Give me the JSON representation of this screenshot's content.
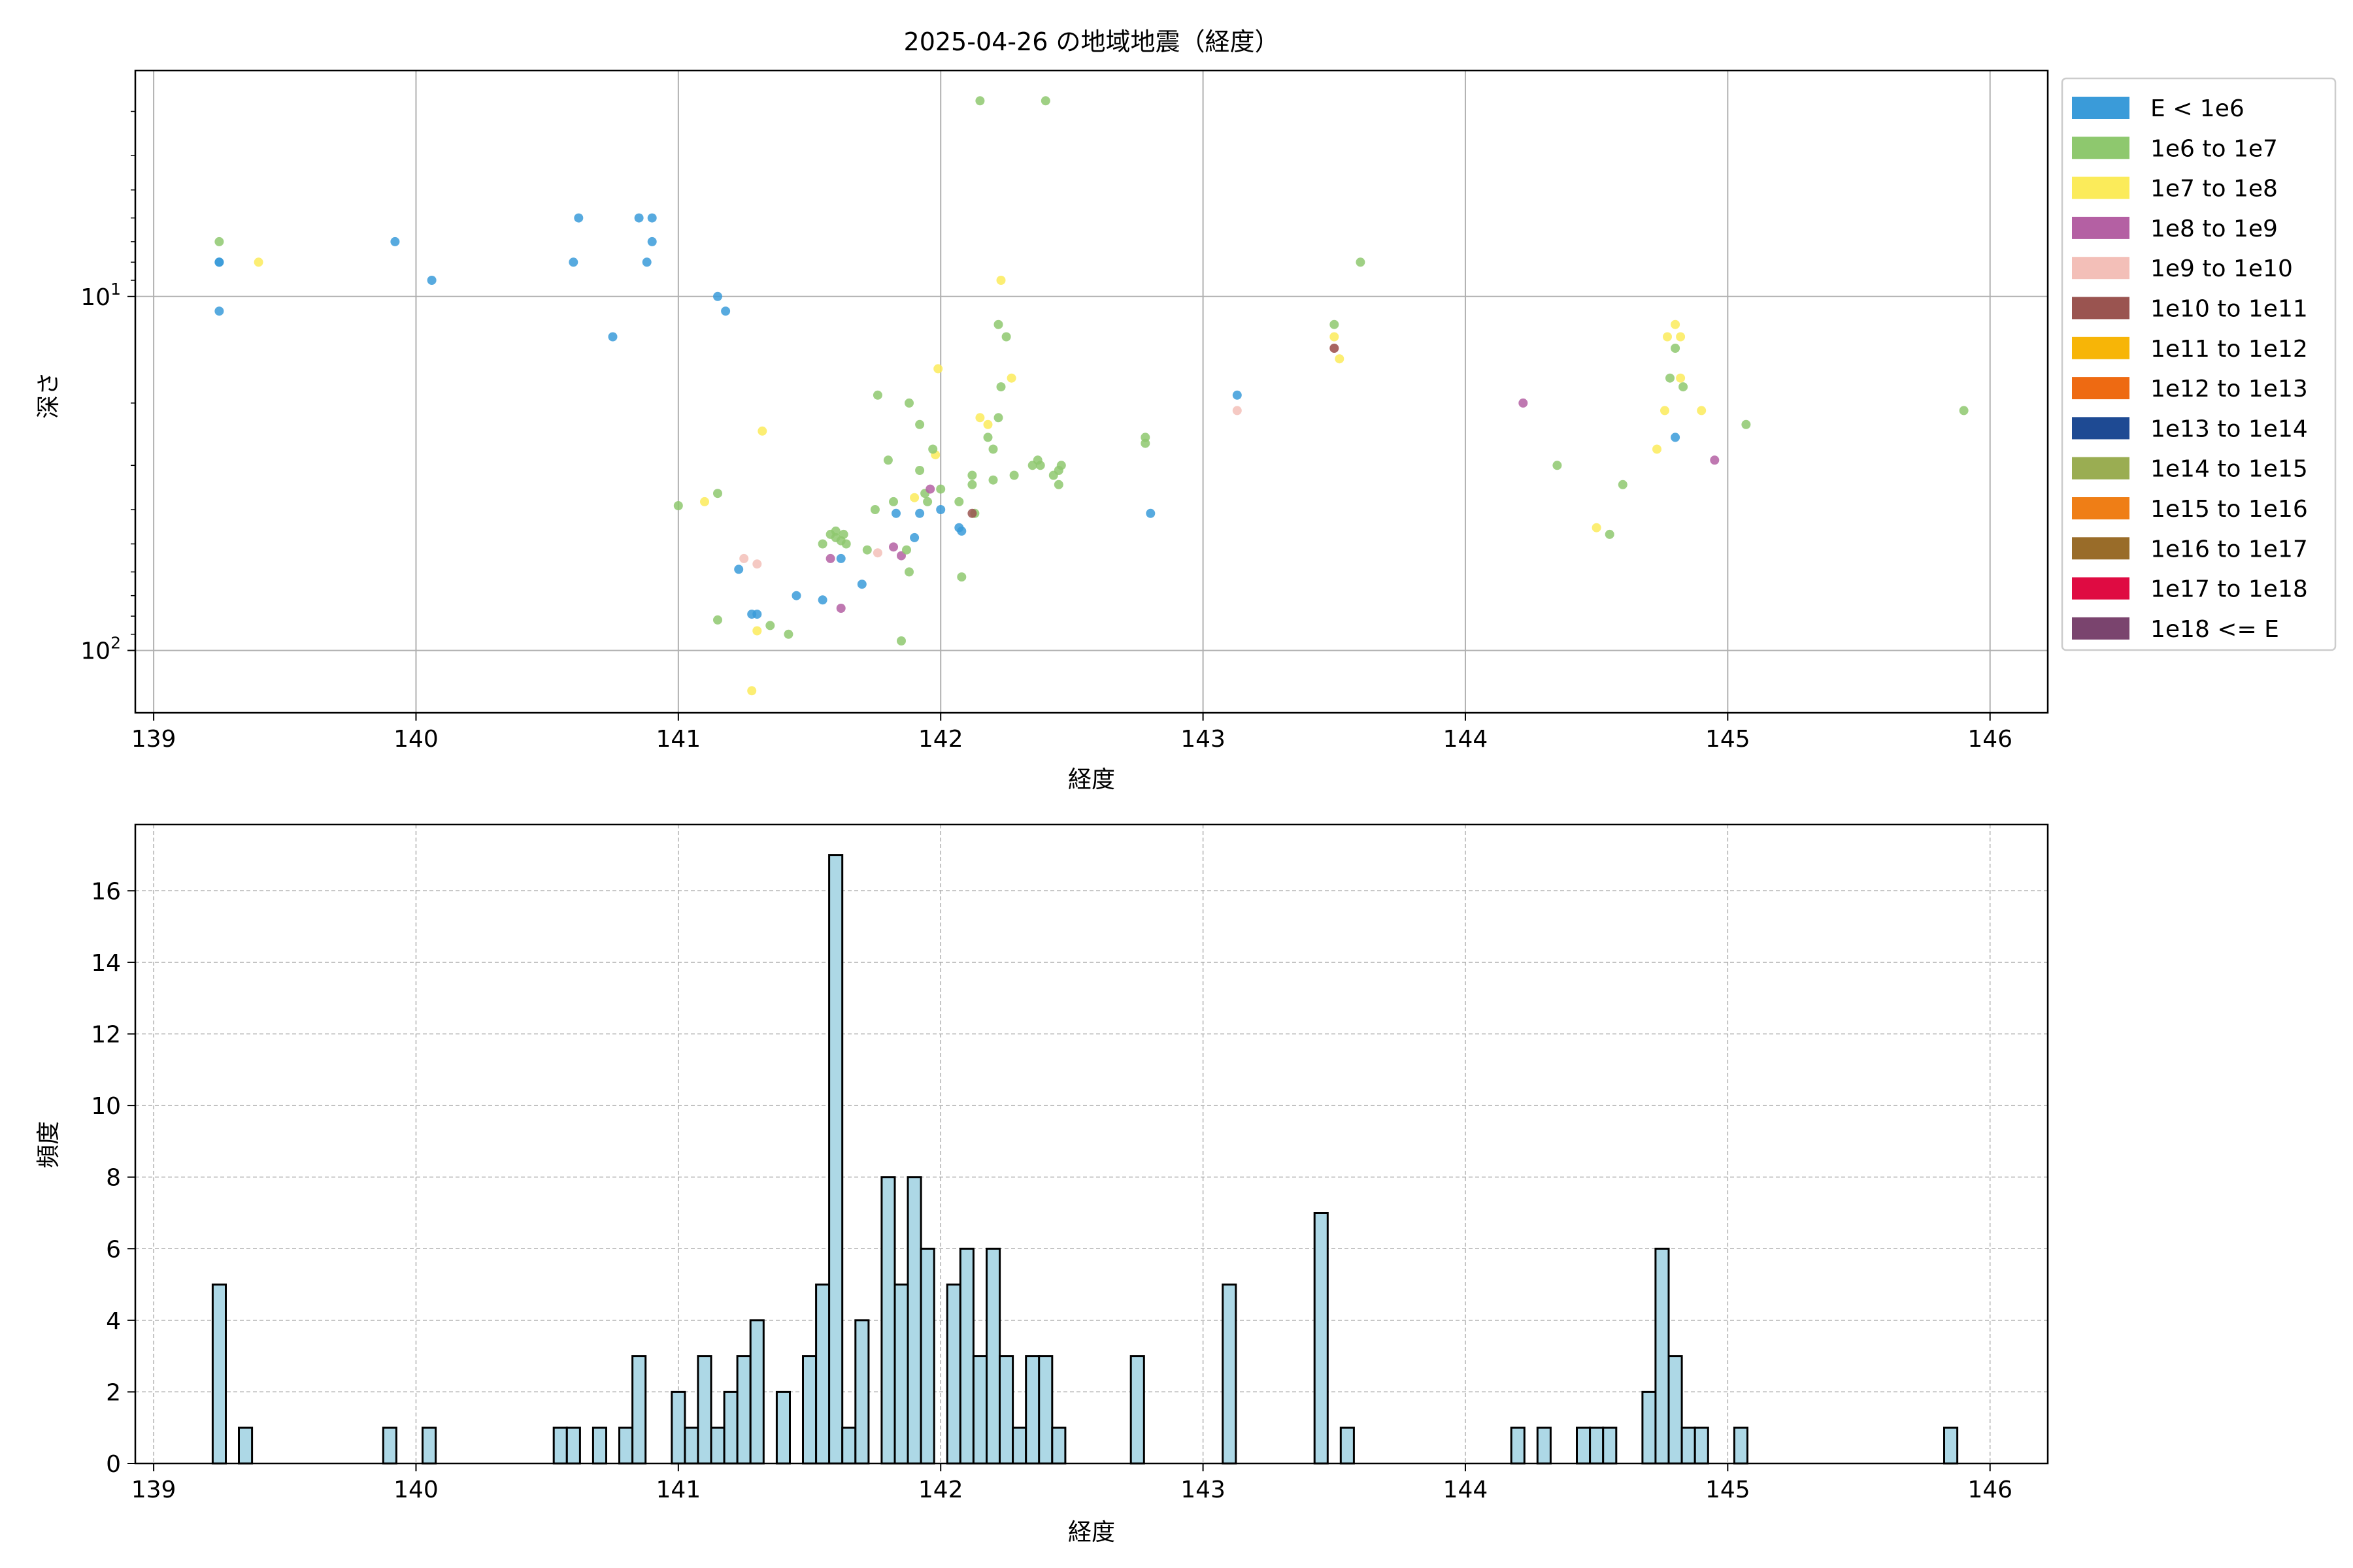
{
  "chart_data": [
    {
      "type": "scatter",
      "title": "2025-04-26 の地域地震（経度）",
      "xlabel": "経度",
      "ylabel": "深さ",
      "xlim": [
        138.93,
        146.22
      ],
      "ylim": [
        150,
        2.3
      ],
      "yscale": "log",
      "y_inverted": true,
      "grid": true,
      "x_ticks": [
        "139",
        "140",
        "141",
        "142",
        "143",
        "144",
        "145",
        "146"
      ],
      "y_ticks": [
        {
          "value": 10,
          "base": "10",
          "exp": "1"
        },
        {
          "value": 100,
          "base": "10",
          "exp": "2"
        }
      ],
      "legend": {
        "placement": "outside-right",
        "entries": [
          {
            "label": "E < 1e6",
            "color": "#3a9bd9"
          },
          {
            "label": "1e6 to 1e7",
            "color": "#8ec86e"
          },
          {
            "label": "1e7 to 1e8",
            "color": "#fbeb5a"
          },
          {
            "label": "1e8 to 1e9",
            "color": "#b460a3"
          },
          {
            "label": "1e9 to 1e10",
            "color": "#f3bfb8"
          },
          {
            "label": "1e10 to 1e11",
            "color": "#9a5450"
          },
          {
            "label": "1e11 to 1e12",
            "color": "#f7b507"
          },
          {
            "label": "1e12 to 1e13",
            "color": "#ee6a12"
          },
          {
            "label": "1e13 to 1e14",
            "color": "#1e4a93"
          },
          {
            "label": "1e14 to 1e15",
            "color": "#9aad52"
          },
          {
            "label": "1e15 to 1e16",
            "color": "#ef7e16"
          },
          {
            "label": "1e16 to 1e17",
            "color": "#996c29"
          },
          {
            "label": "1e17 to 1e18",
            "color": "#df0b42"
          },
          {
            "label": "1e18 <= E",
            "color": "#7a446e"
          }
        ]
      },
      "points": [
        {
          "x": 139.25,
          "y": 8,
          "c": 0
        },
        {
          "x": 139.25,
          "y": 8,
          "c": 0
        },
        {
          "x": 139.25,
          "y": 11,
          "c": 0
        },
        {
          "x": 139.25,
          "y": 7,
          "c": 1
        },
        {
          "x": 139.4,
          "y": 8,
          "c": 2
        },
        {
          "x": 139.92,
          "y": 7,
          "c": 0
        },
        {
          "x": 140.06,
          "y": 9,
          "c": 0
        },
        {
          "x": 140.6,
          "y": 8,
          "c": 0
        },
        {
          "x": 140.62,
          "y": 6,
          "c": 0
        },
        {
          "x": 140.75,
          "y": 13,
          "c": 0
        },
        {
          "x": 140.85,
          "y": 6,
          "c": 0
        },
        {
          "x": 140.9,
          "y": 6,
          "c": 0
        },
        {
          "x": 140.9,
          "y": 7,
          "c": 0
        },
        {
          "x": 140.88,
          "y": 8,
          "c": 0
        },
        {
          "x": 141.15,
          "y": 10,
          "c": 0
        },
        {
          "x": 141.18,
          "y": 11,
          "c": 0
        },
        {
          "x": 142.15,
          "y": 2.8,
          "c": 1
        },
        {
          "x": 142.4,
          "y": 2.8,
          "c": 1
        },
        {
          "x": 142.23,
          "y": 9,
          "c": 2
        },
        {
          "x": 143.6,
          "y": 8,
          "c": 1
        },
        {
          "x": 143.5,
          "y": 12,
          "c": 1
        },
        {
          "x": 143.5,
          "y": 13,
          "c": 2
        },
        {
          "x": 143.5,
          "y": 14,
          "c": 4
        },
        {
          "x": 143.5,
          "y": 14,
          "c": 5
        },
        {
          "x": 143.52,
          "y": 15,
          "c": 2
        },
        {
          "x": 143.13,
          "y": 19,
          "c": 0
        },
        {
          "x": 143.13,
          "y": 21,
          "c": 4
        },
        {
          "x": 144.22,
          "y": 20,
          "c": 3
        },
        {
          "x": 144.35,
          "y": 30,
          "c": 1
        },
        {
          "x": 144.6,
          "y": 34,
          "c": 1
        },
        {
          "x": 144.5,
          "y": 45,
          "c": 2
        },
        {
          "x": 144.55,
          "y": 47,
          "c": 1
        },
        {
          "x": 144.8,
          "y": 12,
          "c": 2
        },
        {
          "x": 144.77,
          "y": 13,
          "c": 2
        },
        {
          "x": 144.82,
          "y": 13,
          "c": 2
        },
        {
          "x": 144.8,
          "y": 14,
          "c": 1
        },
        {
          "x": 144.78,
          "y": 17,
          "c": 1
        },
        {
          "x": 144.82,
          "y": 17,
          "c": 2
        },
        {
          "x": 144.83,
          "y": 18,
          "c": 1
        },
        {
          "x": 144.76,
          "y": 21,
          "c": 2
        },
        {
          "x": 144.9,
          "y": 21,
          "c": 2
        },
        {
          "x": 144.8,
          "y": 25,
          "c": 0
        },
        {
          "x": 144.73,
          "y": 27,
          "c": 2
        },
        {
          "x": 144.95,
          "y": 29,
          "c": 3
        },
        {
          "x": 145.07,
          "y": 23,
          "c": 1
        },
        {
          "x": 145.9,
          "y": 21,
          "c": 1
        },
        {
          "x": 142.78,
          "y": 25,
          "c": 1
        },
        {
          "x": 142.78,
          "y": 26,
          "c": 1
        },
        {
          "x": 142.8,
          "y": 41,
          "c": 0
        },
        {
          "x": 141.0,
          "y": 39,
          "c": 1
        },
        {
          "x": 141.1,
          "y": 38,
          "c": 2
        },
        {
          "x": 141.15,
          "y": 36,
          "c": 1
        },
        {
          "x": 141.25,
          "y": 55,
          "c": 4
        },
        {
          "x": 141.3,
          "y": 57,
          "c": 4
        },
        {
          "x": 141.23,
          "y": 59,
          "c": 0
        },
        {
          "x": 141.28,
          "y": 79,
          "c": 0
        },
        {
          "x": 141.3,
          "y": 79,
          "c": 0
        },
        {
          "x": 141.15,
          "y": 82,
          "c": 1
        },
        {
          "x": 141.3,
          "y": 88,
          "c": 2
        },
        {
          "x": 141.35,
          "y": 85,
          "c": 1
        },
        {
          "x": 141.42,
          "y": 90,
          "c": 1
        },
        {
          "x": 141.45,
          "y": 70,
          "c": 0
        },
        {
          "x": 141.28,
          "y": 130,
          "c": 2
        },
        {
          "x": 141.32,
          "y": 24,
          "c": 2
        },
        {
          "x": 141.55,
          "y": 72,
          "c": 0
        },
        {
          "x": 141.62,
          "y": 76,
          "c": 3
        },
        {
          "x": 141.58,
          "y": 55,
          "c": 3
        },
        {
          "x": 141.62,
          "y": 55,
          "c": 0
        },
        {
          "x": 141.7,
          "y": 65,
          "c": 0
        },
        {
          "x": 141.55,
          "y": 50,
          "c": 1
        },
        {
          "x": 141.58,
          "y": 47,
          "c": 1
        },
        {
          "x": 141.6,
          "y": 48,
          "c": 1
        },
        {
          "x": 141.62,
          "y": 49,
          "c": 1
        },
        {
          "x": 141.64,
          "y": 50,
          "c": 1
        },
        {
          "x": 141.6,
          "y": 46,
          "c": 1
        },
        {
          "x": 141.63,
          "y": 47,
          "c": 1
        },
        {
          "x": 141.72,
          "y": 52,
          "c": 1
        },
        {
          "x": 141.75,
          "y": 40,
          "c": 1
        },
        {
          "x": 141.76,
          "y": 19,
          "c": 1
        },
        {
          "x": 141.8,
          "y": 29,
          "c": 1
        },
        {
          "x": 141.82,
          "y": 38,
          "c": 1
        },
        {
          "x": 141.83,
          "y": 41,
          "c": 0
        },
        {
          "x": 141.76,
          "y": 53,
          "c": 4
        },
        {
          "x": 141.82,
          "y": 51,
          "c": 3
        },
        {
          "x": 141.85,
          "y": 54,
          "c": 3
        },
        {
          "x": 141.88,
          "y": 60,
          "c": 1
        },
        {
          "x": 141.87,
          "y": 52,
          "c": 1
        },
        {
          "x": 141.85,
          "y": 94,
          "c": 1
        },
        {
          "x": 141.88,
          "y": 20,
          "c": 1
        },
        {
          "x": 141.9,
          "y": 48,
          "c": 0
        },
        {
          "x": 141.92,
          "y": 41,
          "c": 0
        },
        {
          "x": 141.92,
          "y": 31,
          "c": 1
        },
        {
          "x": 141.92,
          "y": 23,
          "c": 1
        },
        {
          "x": 141.9,
          "y": 37,
          "c": 2
        },
        {
          "x": 141.94,
          "y": 36,
          "c": 1
        },
        {
          "x": 141.95,
          "y": 38,
          "c": 1
        },
        {
          "x": 141.96,
          "y": 35,
          "c": 3
        },
        {
          "x": 141.98,
          "y": 28,
          "c": 2
        },
        {
          "x": 141.99,
          "y": 16,
          "c": 2
        },
        {
          "x": 142.0,
          "y": 40,
          "c": 0
        },
        {
          "x": 142.0,
          "y": 35,
          "c": 1
        },
        {
          "x": 141.97,
          "y": 27,
          "c": 1
        },
        {
          "x": 142.07,
          "y": 45,
          "c": 0
        },
        {
          "x": 142.08,
          "y": 46,
          "c": 0
        },
        {
          "x": 142.07,
          "y": 38,
          "c": 1
        },
        {
          "x": 142.08,
          "y": 62,
          "c": 1
        },
        {
          "x": 142.12,
          "y": 32,
          "c": 1
        },
        {
          "x": 142.12,
          "y": 34,
          "c": 1
        },
        {
          "x": 142.13,
          "y": 41,
          "c": 1
        },
        {
          "x": 142.12,
          "y": 41,
          "c": 5
        },
        {
          "x": 142.15,
          "y": 22,
          "c": 2
        },
        {
          "x": 142.18,
          "y": 23,
          "c": 2
        },
        {
          "x": 142.18,
          "y": 25,
          "c": 1
        },
        {
          "x": 142.2,
          "y": 33,
          "c": 1
        },
        {
          "x": 142.2,
          "y": 27,
          "c": 1
        },
        {
          "x": 142.22,
          "y": 22,
          "c": 1
        },
        {
          "x": 142.22,
          "y": 12,
          "c": 1
        },
        {
          "x": 142.25,
          "y": 13,
          "c": 1
        },
        {
          "x": 142.23,
          "y": 18,
          "c": 1
        },
        {
          "x": 142.27,
          "y": 17,
          "c": 2
        },
        {
          "x": 142.28,
          "y": 32,
          "c": 1
        },
        {
          "x": 142.35,
          "y": 30,
          "c": 1
        },
        {
          "x": 142.37,
          "y": 29,
          "c": 1
        },
        {
          "x": 142.38,
          "y": 30,
          "c": 1
        },
        {
          "x": 142.43,
          "y": 32,
          "c": 1
        },
        {
          "x": 142.45,
          "y": 31,
          "c": 1
        },
        {
          "x": 142.45,
          "y": 34,
          "c": 1
        },
        {
          "x": 142.46,
          "y": 30,
          "c": 1
        }
      ]
    },
    {
      "type": "bar",
      "xlabel": "経度",
      "ylabel": "頻度",
      "xlim": [
        138.93,
        146.22
      ],
      "ylim": [
        0,
        17.85
      ],
      "grid": true,
      "bin_width": 0.05,
      "bar_color": "#add8e6",
      "edge_color": "#000000",
      "x_ticks": [
        "139",
        "140",
        "141",
        "142",
        "143",
        "144",
        "145",
        "146"
      ],
      "y_ticks": [
        "0",
        "2",
        "4",
        "6",
        "8",
        "10",
        "12",
        "14",
        "16"
      ],
      "bins": [
        {
          "x": 139.25,
          "count": 5
        },
        {
          "x": 139.35,
          "count": 1
        },
        {
          "x": 139.9,
          "count": 1
        },
        {
          "x": 140.05,
          "count": 1
        },
        {
          "x": 140.55,
          "count": 1
        },
        {
          "x": 140.6,
          "count": 1
        },
        {
          "x": 140.7,
          "count": 1
        },
        {
          "x": 140.8,
          "count": 1
        },
        {
          "x": 140.85,
          "count": 3
        },
        {
          "x": 141.0,
          "count": 2
        },
        {
          "x": 141.05,
          "count": 1
        },
        {
          "x": 141.1,
          "count": 3
        },
        {
          "x": 141.15,
          "count": 1
        },
        {
          "x": 141.2,
          "count": 2
        },
        {
          "x": 141.25,
          "count": 3
        },
        {
          "x": 141.3,
          "count": 4
        },
        {
          "x": 141.4,
          "count": 2
        },
        {
          "x": 141.5,
          "count": 3
        },
        {
          "x": 141.55,
          "count": 5
        },
        {
          "x": 141.6,
          "count": 17
        },
        {
          "x": 141.65,
          "count": 1
        },
        {
          "x": 141.7,
          "count": 4
        },
        {
          "x": 141.8,
          "count": 8
        },
        {
          "x": 141.85,
          "count": 5
        },
        {
          "x": 141.9,
          "count": 8
        },
        {
          "x": 141.95,
          "count": 6
        },
        {
          "x": 142.05,
          "count": 5
        },
        {
          "x": 142.1,
          "count": 6
        },
        {
          "x": 142.15,
          "count": 3
        },
        {
          "x": 142.2,
          "count": 6
        },
        {
          "x": 142.25,
          "count": 3
        },
        {
          "x": 142.3,
          "count": 1
        },
        {
          "x": 142.35,
          "count": 3
        },
        {
          "x": 142.4,
          "count": 3
        },
        {
          "x": 142.45,
          "count": 1
        },
        {
          "x": 142.75,
          "count": 3
        },
        {
          "x": 143.1,
          "count": 5
        },
        {
          "x": 143.45,
          "count": 7
        },
        {
          "x": 143.55,
          "count": 1
        },
        {
          "x": 144.2,
          "count": 1
        },
        {
          "x": 144.3,
          "count": 1
        },
        {
          "x": 144.45,
          "count": 1
        },
        {
          "x": 144.5,
          "count": 1
        },
        {
          "x": 144.55,
          "count": 1
        },
        {
          "x": 144.7,
          "count": 2
        },
        {
          "x": 144.75,
          "count": 6
        },
        {
          "x": 144.8,
          "count": 3
        },
        {
          "x": 144.85,
          "count": 1
        },
        {
          "x": 144.9,
          "count": 1
        },
        {
          "x": 145.05,
          "count": 1
        },
        {
          "x": 145.85,
          "count": 1
        }
      ]
    }
  ]
}
